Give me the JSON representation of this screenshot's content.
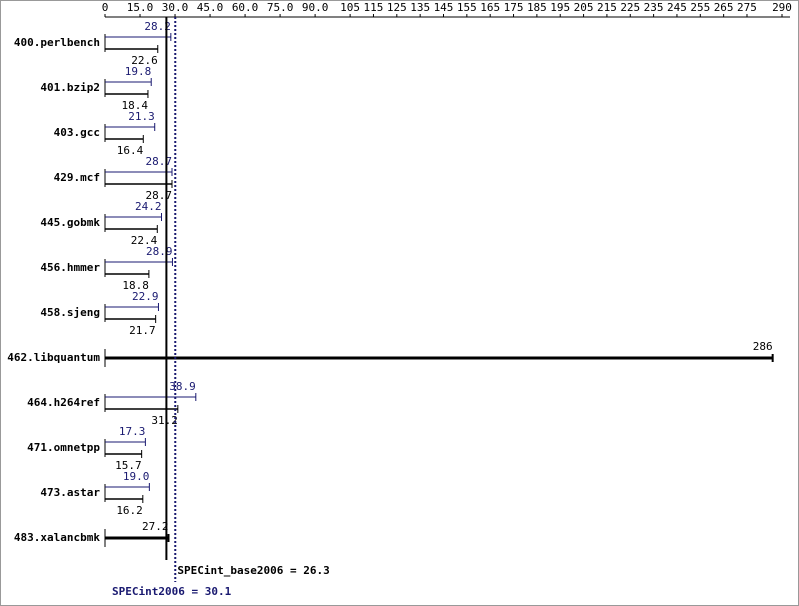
{
  "chart_data": {
    "type": "bar",
    "categories": [
      "400.perlbench",
      "401.bzip2",
      "403.gcc",
      "429.mcf",
      "445.gobmk",
      "456.hmmer",
      "458.sjeng",
      "462.libquantum",
      "464.h264ref",
      "471.omnetpp",
      "473.astar",
      "483.xalancbmk"
    ],
    "series": [
      {
        "color": "#191970",
        "values": [
          28.2,
          19.8,
          21.3,
          28.7,
          24.2,
          28.9,
          22.9,
          null,
          38.9,
          17.3,
          19.0,
          null
        ],
        "value_labels": [
          "28.2",
          "19.8",
          "21.3",
          "28.7",
          "24.2",
          "28.9",
          "22.9",
          null,
          "38.9",
          "17.3",
          "19.0",
          null
        ]
      },
      {
        "color": "#000000",
        "values": [
          22.6,
          18.4,
          16.4,
          28.7,
          22.4,
          18.8,
          21.7,
          286,
          31.2,
          15.7,
          16.2,
          27.2
        ]
      }
    ],
    "xlim": [
      0,
      290
    ],
    "xticks": [
      0,
      {
        "value": 15,
        "label": "15.0"
      },
      {
        "value": 30,
        "label": "30.0"
      },
      {
        "value": 45,
        "label": "45.0"
      },
      {
        "value": 60,
        "label": "60.0"
      },
      {
        "value": 75,
        "label": "75.0"
      },
      {
        "value": 90,
        "label": "90.0"
      },
      105,
      115,
      125,
      135,
      145,
      155,
      165,
      175,
      185,
      195,
      205,
      215,
      225,
      235,
      245,
      255,
      265,
      275,
      290
    ],
    "base_value": 26.3,
    "base_text": "SPECint_base2006 = 26.3",
    "peak_value": 30.1,
    "peak_text": "SPECint2006 = 30.1"
  }
}
